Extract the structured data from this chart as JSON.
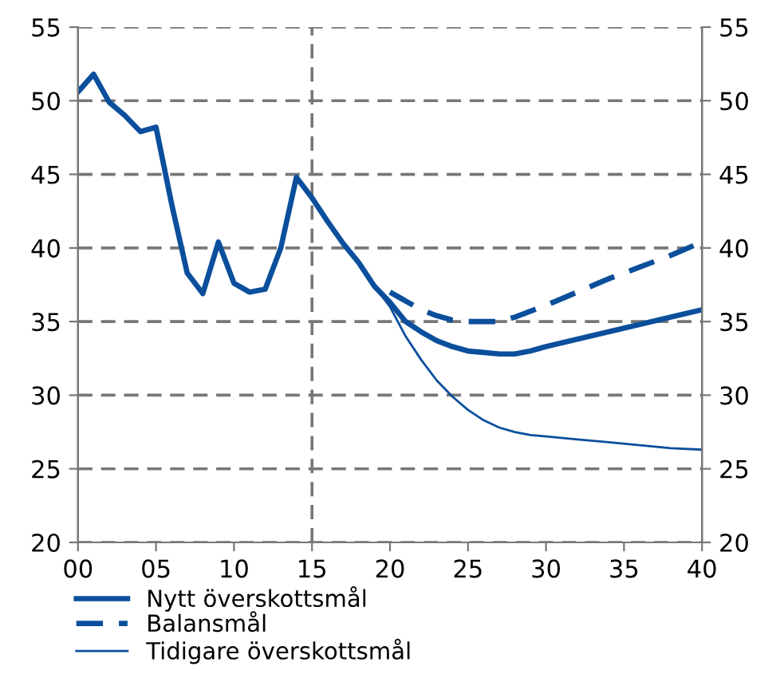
{
  "chart_data": {
    "type": "line",
    "series": [
      {
        "name": "Nytt överskottsmål",
        "color": "#0b4f9c",
        "line_style": "solid",
        "x": [
          0,
          1,
          2,
          3,
          4,
          5,
          6,
          7,
          8,
          9,
          10,
          11,
          12,
          13,
          14,
          15,
          16,
          17,
          18,
          19,
          20,
          21,
          22,
          23,
          24,
          25,
          26,
          27,
          28,
          29,
          30,
          32,
          34,
          36,
          38,
          40
        ],
        "values": [
          50.6,
          51.8,
          49.9,
          49.0,
          47.9,
          48.2,
          43.0,
          38.3,
          36.9,
          40.4,
          37.6,
          37.0,
          37.2,
          40.0,
          44.8,
          43.4,
          41.8,
          40.3,
          39.0,
          37.4,
          36.3,
          35.0,
          34.3,
          33.7,
          33.3,
          33.0,
          32.9,
          32.8,
          32.8,
          33.0,
          33.3,
          33.8,
          34.3,
          34.8,
          35.3,
          35.8
        ]
      },
      {
        "name": "Balansmål",
        "color": "#0b4f9c",
        "line_style": "dashed",
        "x": [
          20,
          21,
          22,
          23,
          24,
          25,
          26,
          27,
          28,
          30,
          32,
          34,
          36,
          38,
          40
        ],
        "values": [
          37.0,
          36.4,
          35.8,
          35.4,
          35.1,
          35.0,
          35.0,
          35.0,
          35.3,
          36.1,
          37.0,
          37.9,
          38.7,
          39.5,
          40.4
        ]
      },
      {
        "name": "Tidigare överskottsmål",
        "color": "#0b4f9c",
        "line_style": "solid",
        "x": [
          19,
          20,
          21,
          22,
          23,
          24,
          25,
          26,
          27,
          28,
          29,
          30,
          32,
          34,
          36,
          38,
          40
        ],
        "values": [
          37.4,
          36.0,
          34.0,
          32.4,
          31.0,
          29.9,
          29.0,
          28.3,
          27.8,
          27.5,
          27.3,
          27.2,
          27.0,
          26.8,
          26.6,
          26.4,
          26.3
        ]
      }
    ],
    "xlim": [
      0,
      40
    ],
    "xticks": [
      {
        "value": 0,
        "label": "00"
      },
      {
        "value": 5,
        "label": "05"
      },
      10,
      15,
      20,
      25,
      30,
      35,
      40
    ],
    "ylim": [
      20,
      55
    ],
    "yticks": [
      20,
      25,
      30,
      35,
      40,
      45,
      50,
      55
    ],
    "y2lim": [
      20,
      55
    ],
    "y2ticks": [
      20,
      25,
      30,
      35,
      40,
      45,
      50,
      55
    ],
    "grid": "y",
    "ref_lines": [
      {
        "axis": "x",
        "value": 15,
        "color": "#777777",
        "line_style": "dashed"
      }
    ],
    "legend": "bottom left"
  }
}
